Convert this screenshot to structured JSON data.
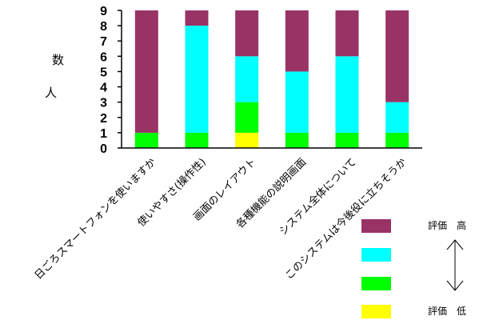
{
  "chart_data": {
    "type": "bar",
    "stacked": true,
    "categories": [
      "日ごろスマートフォンを使いますか",
      "使いやすさ(操作性)",
      "画面のレイアウト",
      "各種機能の説明画面",
      "システム全体について",
      "このシステムは今後役に立ちそうか"
    ],
    "series": [
      {
        "color": "#ffff00",
        "values": [
          0,
          0,
          1,
          0,
          0,
          0
        ]
      },
      {
        "color": "#00ff00",
        "values": [
          1,
          1,
          2,
          1,
          1,
          1
        ]
      },
      {
        "color": "#00ffff",
        "values": [
          0,
          7,
          3,
          4,
          5,
          2
        ]
      },
      {
        "color": "#993366",
        "values": [
          8,
          1,
          3,
          4,
          3,
          6
        ]
      }
    ],
    "ylabel": "人　数",
    "ylim": [
      0,
      9
    ],
    "yticks": [
      "0",
      "1",
      "2",
      "3",
      "4",
      "5",
      "6",
      "7",
      "8",
      "9"
    ],
    "grid": false,
    "legend": {
      "placement": "bottom-right",
      "high_label": "評価　高",
      "low_label": "評価　低"
    }
  }
}
